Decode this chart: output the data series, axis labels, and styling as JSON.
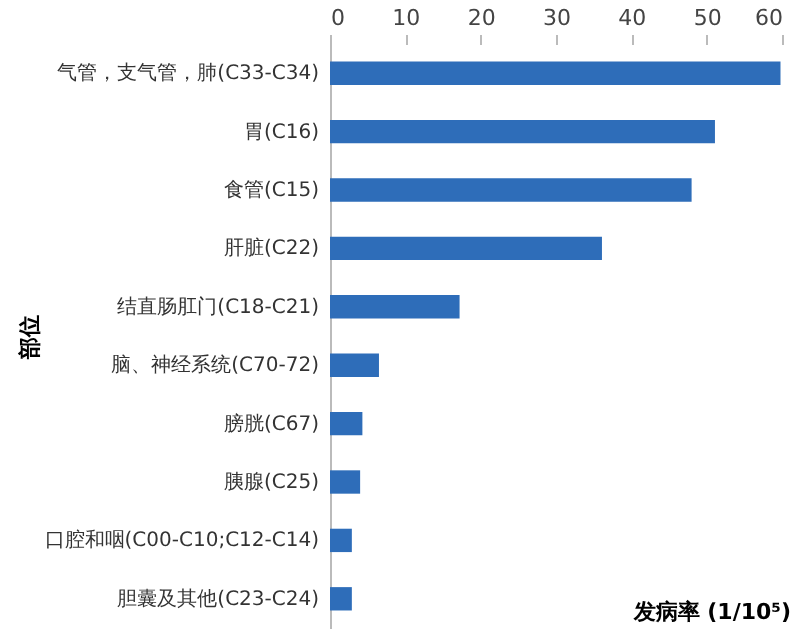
{
  "chart_data": {
    "type": "bar",
    "orientation": "horizontal",
    "xlabel": "发病率 (1/10⁵)",
    "ylabel": "部位",
    "categories": [
      "气管，支气管，肺(C33-C34)",
      "胃(C16)",
      "食管(C15)",
      "肝脏(C22)",
      "结直肠肛门(C18-C21)",
      "脑、神经系统(C70-72)",
      "膀胱(C67)",
      "胰腺(C25)",
      "口腔和咽(C00-C10;C12-C14)",
      "胆囊及其他(C23-C24)"
    ],
    "values": [
      59.8,
      51.1,
      48.0,
      36.1,
      17.2,
      6.5,
      4.3,
      4.0,
      2.9,
      2.9
    ],
    "color": "#2e6db9",
    "xlim": [
      0,
      60
    ],
    "xticks": [
      0,
      10,
      20,
      30,
      40,
      50,
      60
    ],
    "grid": false
  }
}
